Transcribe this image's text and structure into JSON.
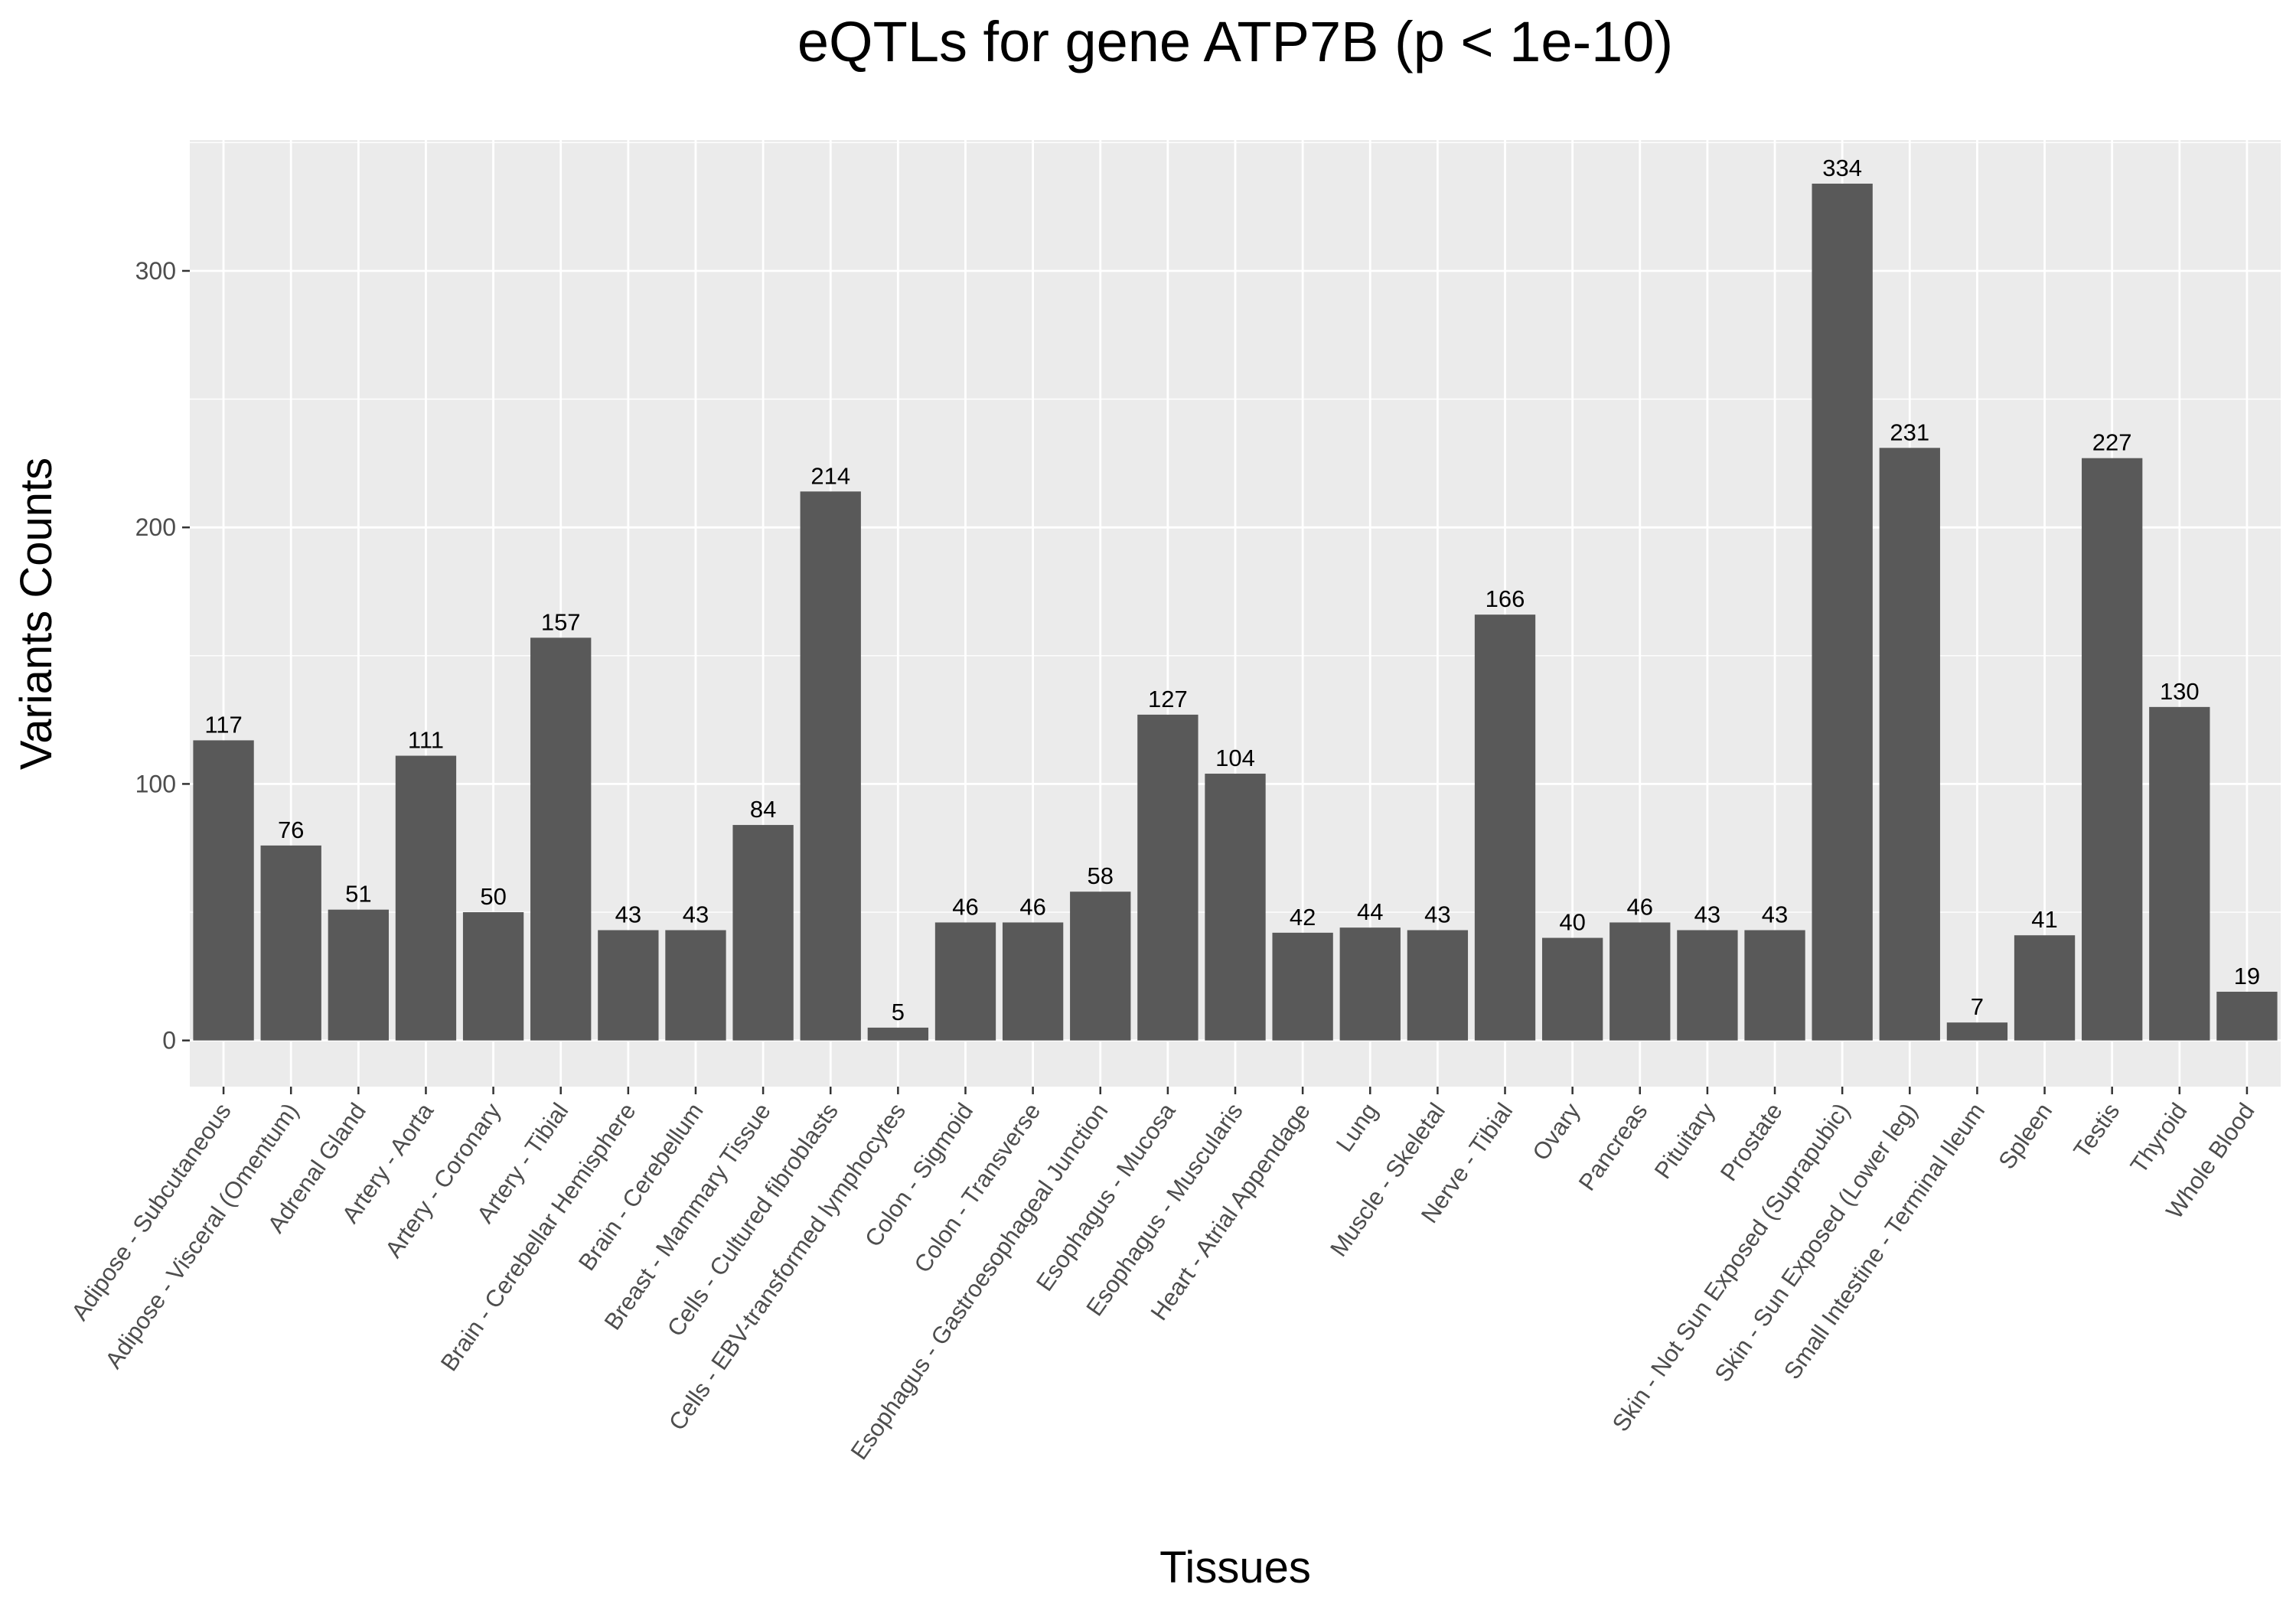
{
  "chart_data": {
    "type": "bar",
    "title": "eQTLs for gene ATP7B (p < 1e-10)",
    "xlabel": "Tissues",
    "ylabel": "Variants Counts",
    "ylim": [
      -18,
      351
    ],
    "yticks": [
      0,
      100,
      200,
      300
    ],
    "grid": true,
    "legend": "none",
    "bar_color": "#595959",
    "panel_color": "#ebebeb",
    "categories": [
      "Adipose - Subcutaneous",
      "Adipose - Visceral (Omentum)",
      "Adrenal Gland",
      "Artery - Aorta",
      "Artery - Coronary",
      "Artery - Tibial",
      "Brain - Cerebellar Hemisphere",
      "Brain - Cerebellum",
      "Breast - Mammary Tissue",
      "Cells - Cultured fibroblasts",
      "Cells - EBV-transformed lymphocytes",
      "Colon - Sigmoid",
      "Colon - Transverse",
      "Esophagus - Gastroesophageal Junction",
      "Esophagus - Mucosa",
      "Esophagus - Muscularis",
      "Heart - Atrial Appendage",
      "Lung",
      "Muscle - Skeletal",
      "Nerve - Tibial",
      "Ovary",
      "Pancreas",
      "Pituitary",
      "Prostate",
      "Skin - Not Sun Exposed (Suprapubic)",
      "Skin - Sun Exposed (Lower leg)",
      "Small Intestine - Terminal Ileum",
      "Spleen",
      "Testis",
      "Thyroid",
      "Whole Blood"
    ],
    "values": [
      117,
      76,
      51,
      111,
      50,
      157,
      43,
      43,
      84,
      214,
      5,
      46,
      46,
      58,
      127,
      104,
      42,
      44,
      43,
      166,
      40,
      46,
      43,
      43,
      334,
      231,
      7,
      41,
      227,
      130,
      19
    ]
  }
}
